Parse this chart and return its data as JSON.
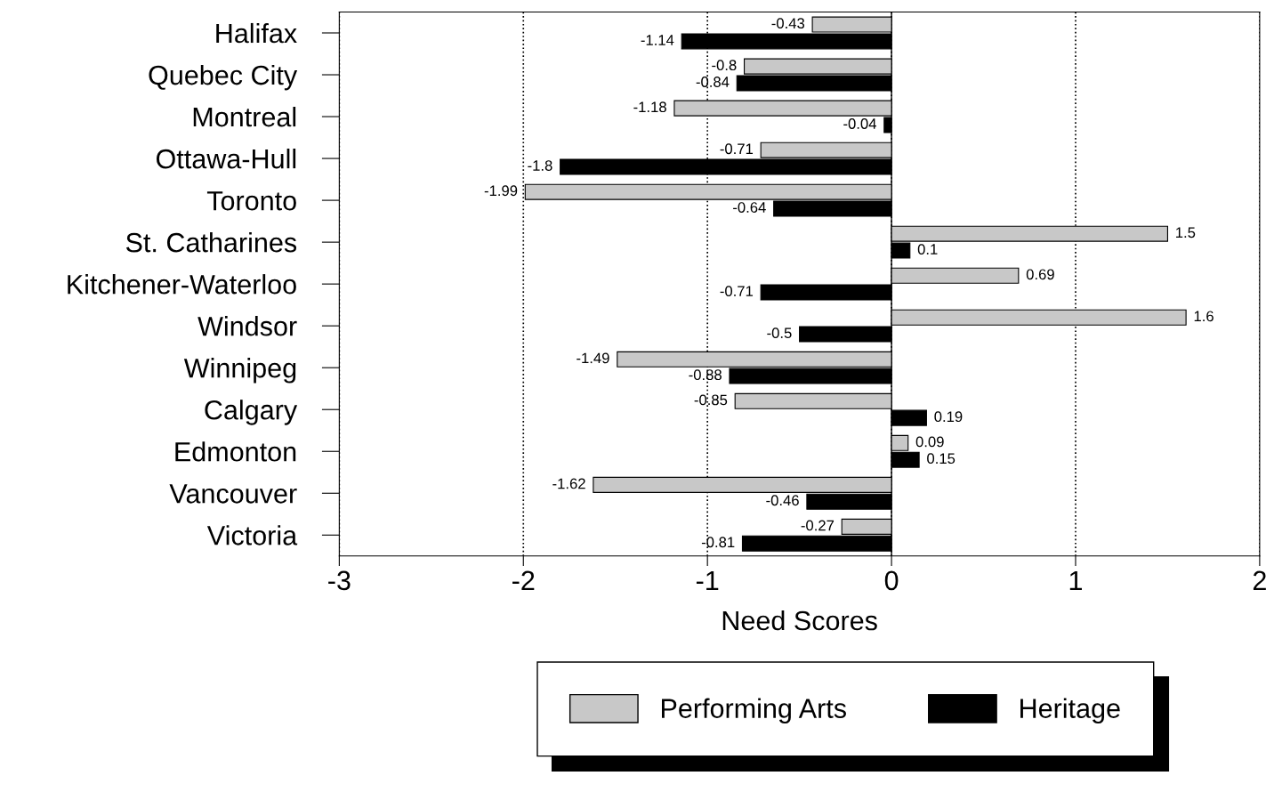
{
  "chart_data": {
    "type": "bar",
    "orientation": "horizontal",
    "xlabel": "Need Scores",
    "categories": [
      "Halifax",
      "Quebec City",
      "Montreal",
      "Ottawa-Hull",
      "Toronto",
      "St. Catharines",
      "Kitchener-Waterloo",
      "Windsor",
      "Winnipeg",
      "Calgary",
      "Edmonton",
      "Vancouver",
      "Victoria"
    ],
    "series": [
      {
        "name": "Performing Arts",
        "color": "#c8c8c8",
        "values": [
          -0.43,
          -0.8,
          -1.18,
          -0.71,
          -1.99,
          1.5,
          0.69,
          1.6,
          -1.49,
          -0.85,
          0.09,
          -1.62,
          -0.27
        ]
      },
      {
        "name": "Heritage",
        "color": "#000000",
        "values": [
          -1.14,
          -0.84,
          -0.04,
          -1.8,
          -0.64,
          0.1,
          -0.71,
          -0.5,
          -0.88,
          0.19,
          0.15,
          -0.46,
          -0.81
        ]
      }
    ],
    "xlim": [
      -3,
      2
    ],
    "xticks": [
      -3,
      -2,
      -1,
      0,
      1,
      2
    ],
    "grid": "x",
    "legend": "bottom",
    "data_labels": true
  }
}
